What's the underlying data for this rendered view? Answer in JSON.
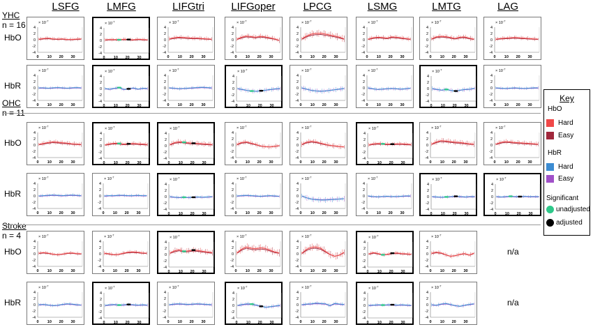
{
  "figure": {
    "columns": [
      "LSFG",
      "LMFG",
      "LIFGtri",
      "LIFGoper",
      "LPCG",
      "LSMG",
      "LMTG",
      "LAG"
    ],
    "groups": [
      {
        "name": "YHC",
        "n_label": "n = 16",
        "rows": [
          "HbO",
          "HbR"
        ]
      },
      {
        "name": "OHC",
        "n_label": "n = 11",
        "rows": [
          "HbO",
          "HbR"
        ]
      },
      {
        "name": "Stroke",
        "n_label": "n = 4",
        "rows": [
          "HbO",
          "HbR"
        ]
      }
    ],
    "na_label": "n/a",
    "key": {
      "title": "Key",
      "hbo_heading": "HbO",
      "hbr_heading": "HbR",
      "hard_label": "Hard",
      "easy_label": "Easy",
      "significant_heading": "Significant",
      "unadjusted_label": "unadjusted",
      "adjusted_label": "adjusted"
    },
    "colors": {
      "hbo_hard": "#f04848",
      "hbo_easy": "#a0283c",
      "hbr_hard": "#3c8cd2",
      "hbr_easy": "#a050c8",
      "sig_unadjusted": "#2ec88a",
      "sig_adjusted": "#000000",
      "panel_border": "#7a7a7a",
      "significant_border": "#000000"
    }
  },
  "chart_data": {
    "type": "line",
    "grid_layout": "small multiples: 6 rows (group x signal) by 8 region columns",
    "panel_axes": {
      "y_scale_label": "× 10^-7",
      "yticks": [
        4,
        2,
        0,
        -2,
        -4
      ],
      "xticks": [
        0,
        10,
        20,
        30
      ],
      "xlim": [
        0,
        38
      ],
      "ylim": [
        -4,
        4
      ]
    },
    "note_values": "curves are approximate readings of mean HbO/HbR response (×10^-7) over time 0-38 s with error bars",
    "panels": [
      {
        "group": "YHC",
        "signal": "HbO",
        "region": "LSFG",
        "significant": false,
        "y": [
          0.2,
          0.4,
          0.5,
          0.3,
          0.2,
          0.3,
          0.1,
          0.1,
          0.2,
          0.3
        ]
      },
      {
        "group": "YHC",
        "signal": "HbO",
        "region": "LMFG",
        "significant": true,
        "y": [
          0.2,
          0.3,
          0.3,
          0.2,
          0.4,
          0.3,
          0.2,
          0.4,
          0.3,
          0.2
        ]
      },
      {
        "group": "YHC",
        "signal": "HbO",
        "region": "LIFGtri",
        "significant": false,
        "y": [
          0.3,
          0.6,
          0.8,
          0.7,
          0.6,
          0.5,
          0.5,
          0.4,
          0.3,
          0.2
        ]
      },
      {
        "group": "YHC",
        "signal": "HbO",
        "region": "LIFGoper",
        "significant": false,
        "y": [
          0.2,
          0.8,
          1.2,
          1.0,
          0.8,
          1.1,
          0.9,
          0.6,
          0.3,
          -0.2
        ]
      },
      {
        "group": "YHC",
        "signal": "HbO",
        "region": "LPCG",
        "significant": false,
        "y": [
          0.3,
          1.2,
          1.8,
          2.0,
          2.1,
          1.8,
          1.5,
          1.2,
          0.8,
          0.3
        ]
      },
      {
        "group": "YHC",
        "signal": "HbO",
        "region": "LSMG",
        "significant": false,
        "y": [
          0.2,
          0.6,
          0.8,
          0.7,
          0.5,
          0.9,
          0.8,
          0.6,
          0.4,
          0.2
        ]
      },
      {
        "group": "YHC",
        "signal": "HbO",
        "region": "LMTG",
        "significant": false,
        "y": [
          0.3,
          0.9,
          1.1,
          1.0,
          0.7,
          0.4,
          0.8,
          0.9,
          0.5,
          0.2
        ]
      },
      {
        "group": "YHC",
        "signal": "HbO",
        "region": "LAG",
        "significant": false,
        "y": [
          0.2,
          0.4,
          0.5,
          0.6,
          0.7,
          0.6,
          0.5,
          0.4,
          0.3,
          0.2
        ]
      },
      {
        "group": "YHC",
        "signal": "HbR",
        "region": "LSFG",
        "significant": false,
        "y": [
          0.0,
          0.0,
          -0.1,
          0.0,
          0.1,
          0.0,
          -0.1,
          0.0,
          0.1,
          0.0
        ]
      },
      {
        "group": "YHC",
        "signal": "HbR",
        "region": "LMFG",
        "significant": true,
        "y": [
          0.0,
          -0.2,
          0.1,
          0.3,
          -0.3,
          -0.1,
          0.2,
          -0.2,
          0.1,
          0.0
        ]
      },
      {
        "group": "YHC",
        "signal": "HbR",
        "region": "LIFGtri",
        "significant": false,
        "y": [
          0.0,
          -0.1,
          -0.3,
          -0.2,
          -0.1,
          0.0,
          0.1,
          0.2,
          0.1,
          0.0
        ]
      },
      {
        "group": "YHC",
        "signal": "HbR",
        "region": "LIFGoper",
        "significant": true,
        "y": [
          0.0,
          -0.3,
          -0.6,
          -0.8,
          -0.9,
          -0.7,
          -0.5,
          -0.3,
          -0.1,
          0.0
        ]
      },
      {
        "group": "YHC",
        "signal": "HbR",
        "region": "LPCG",
        "significant": false,
        "y": [
          0.0,
          -0.4,
          -0.8,
          -1.0,
          -1.1,
          -1.0,
          -0.8,
          -0.6,
          -0.4,
          -0.2
        ]
      },
      {
        "group": "YHC",
        "signal": "HbR",
        "region": "LSMG",
        "significant": false,
        "y": [
          0.0,
          -0.3,
          -0.5,
          -0.4,
          -0.3,
          -0.2,
          -0.3,
          -0.4,
          -0.3,
          -0.1
        ]
      },
      {
        "group": "YHC",
        "signal": "HbR",
        "region": "LMTG",
        "significant": true,
        "y": [
          0.0,
          -0.3,
          -0.5,
          -0.3,
          -0.6,
          -0.8,
          -0.5,
          -0.3,
          -0.2,
          0.1
        ]
      },
      {
        "group": "YHC",
        "signal": "HbR",
        "region": "LAG",
        "significant": false,
        "y": [
          0.0,
          -0.1,
          -0.2,
          -0.1,
          0.0,
          -0.1,
          -0.2,
          -0.1,
          0.0,
          0.0
        ]
      },
      {
        "group": "OHC",
        "signal": "HbO",
        "region": "LSFG",
        "significant": false,
        "y": [
          0.2,
          0.5,
          0.8,
          1.0,
          0.9,
          0.7,
          0.6,
          0.4,
          0.3,
          0.2
        ]
      },
      {
        "group": "OHC",
        "signal": "HbO",
        "region": "LMFG",
        "significant": true,
        "y": [
          0.3,
          0.6,
          0.8,
          0.7,
          0.5,
          0.6,
          0.7,
          0.6,
          0.5,
          0.4
        ]
      },
      {
        "group": "OHC",
        "signal": "HbO",
        "region": "LIFGtri",
        "significant": true,
        "y": [
          0.4,
          1.0,
          1.3,
          1.1,
          0.9,
          0.8,
          0.7,
          0.6,
          0.5,
          0.4
        ]
      },
      {
        "group": "OHC",
        "signal": "HbO",
        "region": "LIFGoper",
        "significant": false,
        "y": [
          0.2,
          0.8,
          1.0,
          0.6,
          0.2,
          -0.3,
          -0.5,
          -0.6,
          -0.4,
          -0.2
        ]
      },
      {
        "group": "OHC",
        "signal": "HbO",
        "region": "LPCG",
        "significant": false,
        "y": [
          0.2,
          0.9,
          1.2,
          1.0,
          0.6,
          0.2,
          -0.1,
          -0.3,
          -0.5,
          -0.6
        ]
      },
      {
        "group": "OHC",
        "signal": "HbO",
        "region": "LSMG",
        "significant": true,
        "y": [
          0.3,
          0.6,
          0.7,
          0.6,
          0.5,
          0.5,
          0.6,
          0.6,
          0.5,
          0.4
        ]
      },
      {
        "group": "OHC",
        "signal": "HbO",
        "region": "LMTG",
        "significant": false,
        "y": [
          0.3,
          1.0,
          1.4,
          1.3,
          1.1,
          0.9,
          0.8,
          0.6,
          0.4,
          0.3
        ]
      },
      {
        "group": "OHC",
        "signal": "HbO",
        "region": "LAG",
        "significant": false,
        "y": [
          0.3,
          0.8,
          1.1,
          1.0,
          0.8,
          0.7,
          0.6,
          0.5,
          0.4,
          0.3
        ]
      },
      {
        "group": "OHC",
        "signal": "HbR",
        "region": "LSFG",
        "significant": false,
        "y": [
          0.0,
          0.1,
          0.2,
          0.3,
          0.2,
          0.1,
          0.2,
          0.3,
          0.2,
          0.1
        ]
      },
      {
        "group": "OHC",
        "signal": "HbR",
        "region": "LMFG",
        "significant": false,
        "y": [
          0.0,
          0.1,
          0.1,
          0.2,
          0.2,
          0.1,
          0.1,
          0.2,
          0.1,
          0.1
        ]
      },
      {
        "group": "OHC",
        "signal": "HbR",
        "region": "LIFGtri",
        "significant": true,
        "y": [
          0.0,
          -0.2,
          -0.3,
          -0.2,
          -0.3,
          -0.2,
          -0.1,
          -0.2,
          -0.1,
          0.0
        ]
      },
      {
        "group": "OHC",
        "signal": "HbR",
        "region": "LIFGoper",
        "significant": false,
        "y": [
          0.0,
          0.1,
          0.2,
          0.1,
          0.0,
          -0.1,
          0.0,
          0.1,
          0.0,
          -0.1
        ]
      },
      {
        "group": "OHC",
        "signal": "HbR",
        "region": "LPCG",
        "significant": false,
        "y": [
          0.0,
          -0.6,
          -1.0,
          -1.2,
          -1.3,
          -1.3,
          -1.2,
          -1.1,
          -1.0,
          -0.9
        ]
      },
      {
        "group": "OHC",
        "signal": "HbR",
        "region": "LSMG",
        "significant": false,
        "y": [
          0.0,
          -0.2,
          -0.3,
          -0.2,
          -0.1,
          -0.2,
          -0.2,
          -0.1,
          0.0,
          0.0
        ]
      },
      {
        "group": "OHC",
        "signal": "HbR",
        "region": "LMTG",
        "significant": true,
        "y": [
          0.0,
          -0.1,
          -0.2,
          -0.1,
          0.0,
          0.1,
          0.0,
          -0.1,
          0.0,
          0.0
        ]
      },
      {
        "group": "OHC",
        "signal": "HbR",
        "region": "LAG",
        "significant": true,
        "y": [
          0.0,
          -0.1,
          0.0,
          0.1,
          0.0,
          0.0,
          0.1,
          0.0,
          0.0,
          0.0
        ]
      },
      {
        "group": "Stroke",
        "signal": "HbO",
        "region": "LSFG",
        "significant": false,
        "y": [
          0.2,
          0.4,
          0.2,
          -0.1,
          -0.3,
          -0.1,
          0.2,
          0.3,
          0.1,
          0.0
        ]
      },
      {
        "group": "Stroke",
        "signal": "HbO",
        "region": "LMFG",
        "significant": false,
        "y": [
          0.2,
          0.0,
          -0.3,
          -0.2,
          0.2,
          0.5,
          0.6,
          0.5,
          0.3,
          0.2
        ]
      },
      {
        "group": "Stroke",
        "signal": "HbO",
        "region": "LIFGtri",
        "significant": true,
        "y": [
          0.5,
          1.2,
          1.5,
          1.0,
          1.2,
          1.4,
          1.3,
          1.0,
          0.8,
          0.6
        ]
      },
      {
        "group": "Stroke",
        "signal": "HbO",
        "region": "LIFGoper",
        "significant": false,
        "y": [
          0.3,
          1.5,
          2.2,
          1.8,
          1.6,
          1.9,
          1.7,
          1.2,
          0.6,
          0.3
        ]
      },
      {
        "group": "Stroke",
        "signal": "HbO",
        "region": "LPCG",
        "significant": false,
        "y": [
          0.2,
          1.4,
          2.1,
          2.2,
          1.8,
          0.8,
          -0.2,
          -0.8,
          -0.4,
          0.5
        ]
      },
      {
        "group": "Stroke",
        "signal": "HbO",
        "region": "LSMG",
        "significant": true,
        "y": [
          0.2,
          0.6,
          0.3,
          -0.1,
          0.1,
          0.4,
          0.5,
          0.3,
          0.2,
          0.1
        ]
      },
      {
        "group": "Stroke",
        "signal": "HbO",
        "region": "LMTG",
        "significant": false,
        "y": [
          0.2,
          0.5,
          0.3,
          -0.3,
          -0.8,
          -0.6,
          -0.2,
          0.1,
          -0.4,
          0.2
        ]
      },
      {
        "group": "Stroke",
        "signal": "HbR",
        "region": "LSFG",
        "significant": false,
        "y": [
          0.0,
          0.1,
          -0.1,
          -0.3,
          -0.2,
          0.1,
          0.3,
          0.2,
          0.0,
          -0.1
        ]
      },
      {
        "group": "Stroke",
        "signal": "HbR",
        "region": "LMFG",
        "significant": true,
        "y": [
          0.0,
          0.2,
          0.3,
          0.1,
          0.2,
          0.3,
          0.2,
          0.1,
          0.2,
          0.1
        ]
      },
      {
        "group": "Stroke",
        "signal": "HbR",
        "region": "LIFGtri",
        "significant": false,
        "y": [
          0.0,
          0.2,
          0.3,
          0.2,
          0.1,
          0.2,
          0.3,
          0.2,
          0.1,
          0.0
        ]
      },
      {
        "group": "Stroke",
        "signal": "HbR",
        "region": "LIFGoper",
        "significant": true,
        "y": [
          0.0,
          0.3,
          0.5,
          0.4,
          0.1,
          -0.3,
          -0.6,
          -0.4,
          -0.2,
          0.0
        ]
      },
      {
        "group": "Stroke",
        "signal": "HbR",
        "region": "LPCG",
        "significant": false,
        "y": [
          0.0,
          0.2,
          0.3,
          0.5,
          0.4,
          0.3,
          -0.3,
          0.4,
          0.2,
          0.1
        ]
      },
      {
        "group": "Stroke",
        "signal": "HbR",
        "region": "LSMG",
        "significant": true,
        "y": [
          0.0,
          0.1,
          0.2,
          0.1,
          0.2,
          0.2,
          0.1,
          0.2,
          0.1,
          0.0
        ]
      },
      {
        "group": "Stroke",
        "signal": "HbR",
        "region": "LMTG",
        "significant": false,
        "y": [
          0.0,
          -0.2,
          0.2,
          0.4,
          0.1,
          -0.3,
          -0.5,
          -0.2,
          0.1,
          0.3
        ]
      }
    ]
  }
}
